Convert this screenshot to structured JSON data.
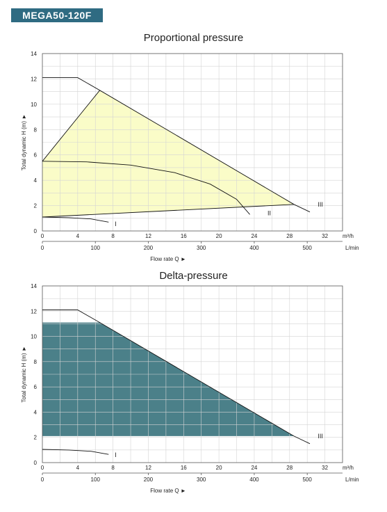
{
  "model_badge": "MEGA50-120F",
  "chart_data": [
    {
      "type": "line",
      "title": "Proportional pressure",
      "ylabel": "Total dynamic H (m) ►",
      "xlabel": "Flow rate Q ►",
      "x_unit": "m³/h",
      "x2_unit": "L/min",
      "xlim": [
        0,
        34
      ],
      "ylim": [
        0,
        14
      ],
      "x_ticks": [
        0,
        4,
        8,
        12,
        16,
        20,
        24,
        28,
        32
      ],
      "y_ticks": [
        0,
        2,
        4,
        6,
        8,
        10,
        12,
        14
      ],
      "x2_ticks": [
        0,
        100,
        200,
        300,
        400,
        500
      ],
      "grid": true,
      "fill": {
        "color": "#fafcc8",
        "points": [
          [
            0,
            5.5
          ],
          [
            6.5,
            11.1
          ],
          [
            28.5,
            2.1
          ],
          [
            0,
            1.1
          ]
        ]
      },
      "series": [
        {
          "name": "I",
          "points": [
            [
              0,
              1.1
            ],
            [
              3,
              1.05
            ],
            [
              5.5,
              0.95
            ],
            [
              7.5,
              0.7
            ]
          ]
        },
        {
          "name": "II",
          "points": [
            [
              0,
              5.5
            ],
            [
              5,
              5.45
            ],
            [
              10,
              5.2
            ],
            [
              15,
              4.6
            ],
            [
              19,
              3.7
            ],
            [
              22,
              2.5
            ],
            [
              23.5,
              1.3
            ]
          ]
        },
        {
          "name": "III",
          "points": [
            [
              0,
              12.1
            ],
            [
              4,
              12.1
            ],
            [
              6.5,
              11.1
            ],
            [
              28.5,
              2.1
            ],
            [
              30.3,
              1.5
            ]
          ]
        },
        {
          "name": "",
          "points": [
            [
              0,
              1.1
            ],
            [
              28.5,
              2.1
            ]
          ]
        },
        {
          "name": "",
          "points": [
            [
              0,
              5.5
            ],
            [
              6.5,
              11.1
            ]
          ]
        }
      ],
      "labels": [
        {
          "text": "I",
          "x": 8.2,
          "y": 0.55
        },
        {
          "text": "II",
          "x": 25.5,
          "y": 1.4
        },
        {
          "text": "III",
          "x": 31.2,
          "y": 2.1
        }
      ]
    },
    {
      "type": "area",
      "title": "Delta-pressure",
      "ylabel": "Total dynamic H (m) ►",
      "xlabel": "Flow rate Q ►",
      "x_unit": "m³/h",
      "x2_unit": "L/min",
      "xlim": [
        0,
        34
      ],
      "ylim": [
        0,
        14
      ],
      "x_ticks": [
        0,
        4,
        8,
        12,
        16,
        20,
        24,
        28,
        32
      ],
      "y_ticks": [
        0,
        2,
        4,
        6,
        8,
        10,
        12,
        14
      ],
      "x2_ticks": [
        0,
        100,
        200,
        300,
        400,
        500
      ],
      "grid": true,
      "fill": {
        "color": "#4b8089",
        "points": [
          [
            0,
            11.1
          ],
          [
            6.5,
            11.1
          ],
          [
            28.5,
            2.1
          ],
          [
            0,
            2.1
          ]
        ]
      },
      "series": [
        {
          "name": "I",
          "points": [
            [
              0,
              1.05
            ],
            [
              3,
              1.0
            ],
            [
              5.5,
              0.9
            ],
            [
              7.5,
              0.65
            ]
          ]
        },
        {
          "name": "III",
          "points": [
            [
              0,
              12.1
            ],
            [
              4,
              12.1
            ],
            [
              6.5,
              11.1
            ],
            [
              28.5,
              2.1
            ],
            [
              30.3,
              1.5
            ]
          ]
        }
      ],
      "labels": [
        {
          "text": "I",
          "x": 8.2,
          "y": 0.6
        },
        {
          "text": "III",
          "x": 31.2,
          "y": 2.1
        }
      ]
    }
  ]
}
